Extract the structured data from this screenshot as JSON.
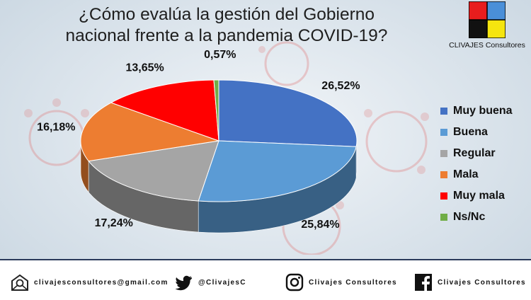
{
  "title_line1": "¿Cómo evalúa la gestión del Gobierno",
  "title_line2": "nacional frente a la pandemia COVID-19?",
  "logo": {
    "text": "CLIVAJES Consultores",
    "colors": [
      "#e81d1d",
      "#4a8fd8",
      "#111111",
      "#f5e50f"
    ]
  },
  "chart_data": {
    "type": "pie",
    "style": "3d",
    "categories": [
      "Muy buena",
      "Buena",
      "Regular",
      "Mala",
      "Muy mala",
      "Ns/Nc"
    ],
    "values": [
      26.52,
      25.84,
      17.24,
      16.18,
      13.65,
      0.57
    ],
    "labels": [
      "26,52%",
      "25,84%",
      "17,24%",
      "16,18%",
      "13,65%",
      "0,57%"
    ],
    "colors": [
      "#4472c4",
      "#5b9bd5",
      "#a5a5a5",
      "#ed7d31",
      "#ff0000",
      "#70ad47"
    ],
    "legend_position": "right"
  },
  "footer": {
    "email": "clivajesconsultores@gmail.com",
    "twitter": "@ClivajesC",
    "instagram": "Clivajes Consultores",
    "facebook": "Clivajes Consultores"
  }
}
